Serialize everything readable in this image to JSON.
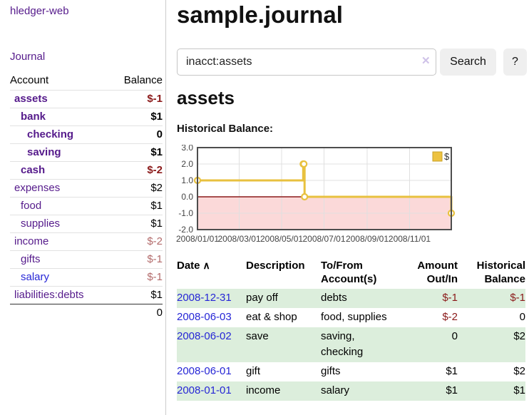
{
  "app": {
    "brand": "hledger-web"
  },
  "sidebar": {
    "journal_link": "Journal",
    "col_account": "Account",
    "col_balance": "Balance",
    "accounts": [
      {
        "name": "assets",
        "balance": "$-1"
      },
      {
        "name": "bank",
        "balance": "$1"
      },
      {
        "name": "checking",
        "balance": "0"
      },
      {
        "name": "saving",
        "balance": "$1"
      },
      {
        "name": "cash",
        "balance": "$-2"
      },
      {
        "name": "expenses",
        "balance": "$2"
      },
      {
        "name": "food",
        "balance": "$1"
      },
      {
        "name": "supplies",
        "balance": "$1"
      },
      {
        "name": "income",
        "balance": "$-2"
      },
      {
        "name": "gifts",
        "balance": "$-1"
      },
      {
        "name": "salary",
        "balance": "$-1"
      },
      {
        "name": "liabilities:debts",
        "balance": "$1"
      }
    ],
    "total": "0"
  },
  "header": {
    "title": "sample.journal"
  },
  "search": {
    "value": "inacct:assets",
    "clear_icon": "✕",
    "button_label": "Search",
    "help_label": "?"
  },
  "account_page": {
    "title": "assets",
    "chart_label": "Historical Balance:"
  },
  "chart_data": {
    "type": "line",
    "style": "step",
    "title": "Historical Balance",
    "legend": [
      {
        "label": "$",
        "color": "#EDC240"
      }
    ],
    "series": [
      {
        "name": "$",
        "points": [
          [
            "2008-01-01",
            1
          ],
          [
            "2008-06-01",
            2
          ],
          [
            "2008-06-02",
            2
          ],
          [
            "2008-06-03",
            0
          ],
          [
            "2008-12-31",
            -1
          ]
        ]
      }
    ],
    "x_range": [
      "2008-01-01",
      "2008-12-31"
    ],
    "y_ticks": [
      3.0,
      2.0,
      1.0,
      0.0,
      -1.0,
      -2.0
    ],
    "x_ticks": [
      "2008/01/01",
      "2008/03/01",
      "2008/05/01",
      "2008/07/01",
      "2008/09/01",
      "2008/11/01"
    ],
    "ylim": [
      -2,
      3
    ],
    "grid": true,
    "legend_position": "top-right",
    "line_color": "#E8C13F",
    "zero_line_color": "#8b1a1a",
    "negative_region_color": "#fbd9d9"
  },
  "transactions": {
    "headers": {
      "date": "Date",
      "sort_icon": "∧",
      "description": "Description",
      "accounts": "To/From\nAccount(s)",
      "amount": "Amount\nOut/In",
      "balance": "Historical\nBalance"
    },
    "rows": [
      {
        "date": "2008-12-31",
        "description": "pay off",
        "accounts": "debts",
        "amount": "$-1",
        "balance": "$-1"
      },
      {
        "date": "2008-06-03",
        "description": "eat & shop",
        "accounts": "food, supplies",
        "amount": "$-2",
        "balance": "0"
      },
      {
        "date": "2008-06-02",
        "description": "save",
        "accounts": "saving,\nchecking",
        "amount": "0",
        "balance": "$2"
      },
      {
        "date": "2008-06-01",
        "description": "gift",
        "accounts": "gifts",
        "amount": "$1",
        "balance": "$2"
      },
      {
        "date": "2008-01-01",
        "description": "income",
        "accounts": "salary",
        "amount": "$1",
        "balance": "$1"
      }
    ]
  },
  "colors": {
    "link_purple": "#551A8B",
    "link_blue": "#2626d6",
    "negative_strong": "#8b1a1a",
    "negative_soft": "#b36b6b",
    "row_stripe_green": "#dceedc",
    "chart_line_gold": "#E8C13F"
  }
}
